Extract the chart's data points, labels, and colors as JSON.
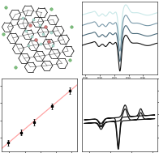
{
  "background_color": "#ffffff",
  "epr_colors": [
    "#c8e8e8",
    "#7a9aaa",
    "#4a6a7a",
    "#101010"
  ],
  "epr_offsets": [
    3.5,
    2.3,
    1.1,
    0.0
  ],
  "scatter_x": [
    0.38,
    0.55,
    0.72,
    0.95,
    1.18
  ],
  "scatter_y": [
    0.07,
    0.13,
    0.19,
    0.28,
    0.37
  ],
  "scatter_yerr": [
    0.018,
    0.018,
    0.018,
    0.018,
    0.018
  ],
  "fit_color": "#ff9999",
  "cv_color": "#111111",
  "bond_color": "#1a1a1a",
  "cu_color": "#d07878",
  "o_color": "#b8e0d8",
  "cl_color": "#80c080"
}
